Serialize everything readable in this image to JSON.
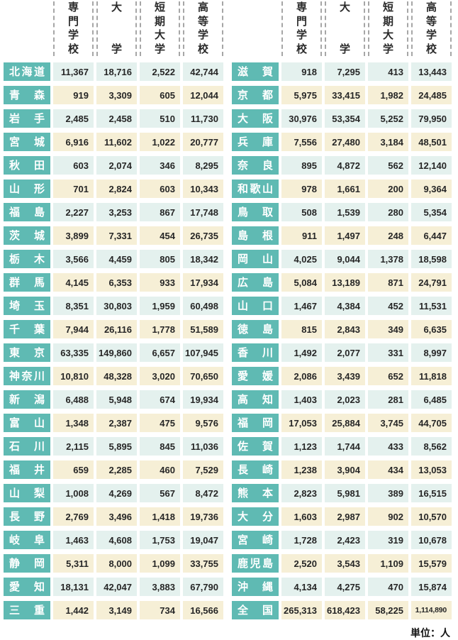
{
  "colors": {
    "prefecture_cell_teal": "#5fbab3",
    "row_tint_blue": "#e4f1ee",
    "row_tint_cream": "#f6efd6",
    "dashed_separator_gray": "#a6a6a6"
  },
  "unit_note": "単位：人",
  "chart_data": {
    "type": "table",
    "columns": [
      "専門学校",
      "大学",
      "短期大学",
      "高等学校"
    ],
    "tables": [
      {
        "rows": [
          {
            "pref": "北海道",
            "values": [
              "11,367",
              "18,716",
              "2,522",
              "42,744"
            ]
          },
          {
            "pref": "青森",
            "values": [
              "919",
              "3,309",
              "605",
              "12,044"
            ]
          },
          {
            "pref": "岩手",
            "values": [
              "2,485",
              "2,458",
              "510",
              "11,730"
            ]
          },
          {
            "pref": "宮城",
            "values": [
              "6,916",
              "11,602",
              "1,022",
              "20,777"
            ]
          },
          {
            "pref": "秋田",
            "values": [
              "603",
              "2,074",
              "346",
              "8,295"
            ]
          },
          {
            "pref": "山形",
            "values": [
              "701",
              "2,824",
              "603",
              "10,343"
            ]
          },
          {
            "pref": "福島",
            "values": [
              "2,227",
              "3,253",
              "867",
              "17,748"
            ]
          },
          {
            "pref": "茨城",
            "values": [
              "3,899",
              "7,331",
              "454",
              "26,735"
            ]
          },
          {
            "pref": "栃木",
            "values": [
              "3,566",
              "4,459",
              "805",
              "18,342"
            ]
          },
          {
            "pref": "群馬",
            "values": [
              "4,145",
              "6,353",
              "933",
              "17,934"
            ]
          },
          {
            "pref": "埼玉",
            "values": [
              "8,351",
              "30,803",
              "1,959",
              "60,498"
            ]
          },
          {
            "pref": "千葉",
            "values": [
              "7,944",
              "26,116",
              "1,778",
              "51,589"
            ]
          },
          {
            "pref": "東京",
            "values": [
              "63,335",
              "149,860",
              "6,657",
              "107,945"
            ]
          },
          {
            "pref": "神奈川",
            "values": [
              "10,810",
              "48,328",
              "3,020",
              "70,650"
            ]
          },
          {
            "pref": "新潟",
            "values": [
              "6,488",
              "5,948",
              "674",
              "19,934"
            ]
          },
          {
            "pref": "富山",
            "values": [
              "1,348",
              "2,387",
              "475",
              "9,576"
            ]
          },
          {
            "pref": "石川",
            "values": [
              "2,115",
              "5,895",
              "845",
              "11,036"
            ]
          },
          {
            "pref": "福井",
            "values": [
              "659",
              "2,285",
              "460",
              "7,529"
            ]
          },
          {
            "pref": "山梨",
            "values": [
              "1,008",
              "4,269",
              "567",
              "8,472"
            ]
          },
          {
            "pref": "長野",
            "values": [
              "2,769",
              "3,496",
              "1,418",
              "19,736"
            ]
          },
          {
            "pref": "岐阜",
            "values": [
              "1,463",
              "4,608",
              "1,753",
              "19,047"
            ]
          },
          {
            "pref": "静岡",
            "values": [
              "5,311",
              "8,000",
              "1,099",
              "33,755"
            ]
          },
          {
            "pref": "愛知",
            "values": [
              "18,131",
              "42,047",
              "3,883",
              "67,790"
            ]
          },
          {
            "pref": "三重",
            "values": [
              "1,442",
              "3,149",
              "734",
              "16,566"
            ]
          }
        ]
      },
      {
        "rows": [
          {
            "pref": "滋賀",
            "values": [
              "918",
              "7,295",
              "413",
              "13,443"
            ]
          },
          {
            "pref": "京都",
            "values": [
              "5,975",
              "33,415",
              "1,982",
              "24,485"
            ]
          },
          {
            "pref": "大阪",
            "values": [
              "30,976",
              "53,354",
              "5,252",
              "79,950"
            ]
          },
          {
            "pref": "兵庫",
            "values": [
              "7,556",
              "27,480",
              "3,184",
              "48,501"
            ]
          },
          {
            "pref": "奈良",
            "values": [
              "895",
              "4,872",
              "562",
              "12,140"
            ]
          },
          {
            "pref": "和歌山",
            "values": [
              "978",
              "1,661",
              "200",
              "9,364"
            ]
          },
          {
            "pref": "鳥取",
            "values": [
              "508",
              "1,539",
              "280",
              "5,354"
            ]
          },
          {
            "pref": "島根",
            "values": [
              "911",
              "1,497",
              "248",
              "6,447"
            ]
          },
          {
            "pref": "岡山",
            "values": [
              "4,025",
              "9,044",
              "1,378",
              "18,598"
            ]
          },
          {
            "pref": "広島",
            "values": [
              "5,084",
              "13,189",
              "871",
              "24,791"
            ]
          },
          {
            "pref": "山口",
            "values": [
              "1,467",
              "4,384",
              "452",
              "11,531"
            ]
          },
          {
            "pref": "徳島",
            "values": [
              "815",
              "2,843",
              "349",
              "6,635"
            ]
          },
          {
            "pref": "香川",
            "values": [
              "1,492",
              "2,077",
              "331",
              "8,997"
            ]
          },
          {
            "pref": "愛媛",
            "values": [
              "2,086",
              "3,439",
              "652",
              "11,818"
            ]
          },
          {
            "pref": "高知",
            "values": [
              "1,403",
              "2,023",
              "281",
              "6,485"
            ]
          },
          {
            "pref": "福岡",
            "values": [
              "17,053",
              "25,884",
              "3,745",
              "44,705"
            ]
          },
          {
            "pref": "佐賀",
            "values": [
              "1,123",
              "1,744",
              "433",
              "8,562"
            ]
          },
          {
            "pref": "長崎",
            "values": [
              "1,238",
              "3,904",
              "434",
              "13,053"
            ]
          },
          {
            "pref": "熊本",
            "values": [
              "2,823",
              "5,981",
              "389",
              "16,515"
            ]
          },
          {
            "pref": "大分",
            "values": [
              "1,603",
              "2,987",
              "902",
              "10,570"
            ]
          },
          {
            "pref": "宮崎",
            "values": [
              "1,728",
              "2,423",
              "319",
              "10,678"
            ]
          },
          {
            "pref": "鹿児島",
            "values": [
              "2,520",
              "3,543",
              "1,109",
              "15,579"
            ]
          },
          {
            "pref": "沖縄",
            "values": [
              "4,134",
              "4,275",
              "470",
              "15,874"
            ]
          },
          {
            "pref": "全国",
            "values": [
              "265,313",
              "618,423",
              "58,225",
              "1,114,890"
            ]
          }
        ]
      }
    ]
  }
}
